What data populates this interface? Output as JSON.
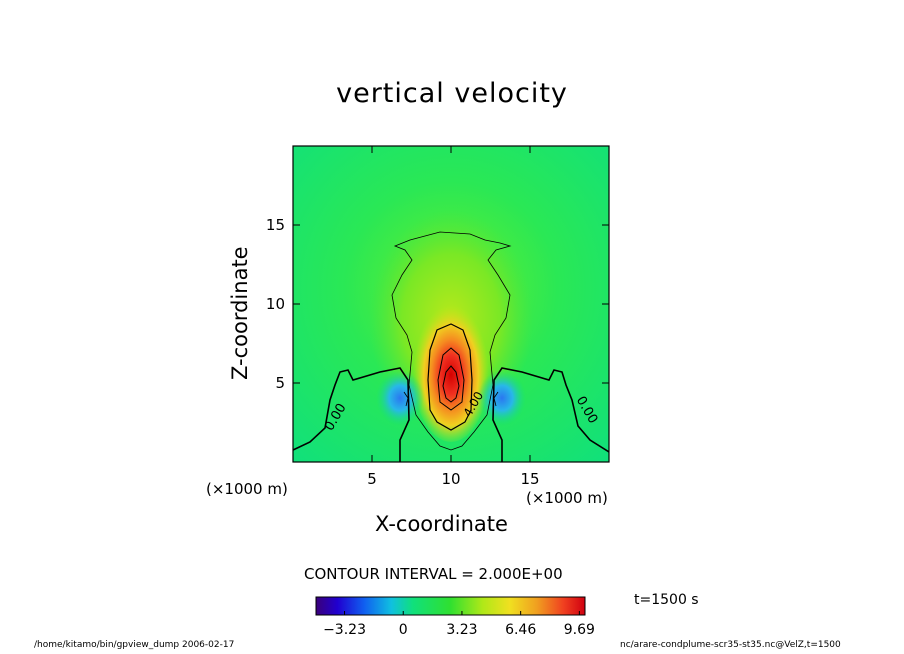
{
  "chart_data": {
    "type": "heatmap",
    "title": "vertical velocity",
    "xlabel": "X-coordinate",
    "ylabel": "Z-coordinate",
    "x_unit": "(×1000 m)",
    "y_unit": "(×1000 m)",
    "xlim": [
      0,
      20
    ],
    "ylim": [
      0,
      20
    ],
    "x_ticks": [
      5,
      10,
      15
    ],
    "y_ticks": [
      5,
      10,
      15
    ],
    "x_tick_labels": [
      "5",
      "10",
      "15"
    ],
    "y_tick_labels": [
      "5",
      "10",
      "15"
    ],
    "contour_interval_label": "CONTOUR INTERVAL = 2.000E+00",
    "contour_labels": [
      "0.00",
      "0.00",
      "4.00"
    ],
    "colorbar_ticks": [
      -3.23,
      0,
      3.23,
      6.46,
      9.69
    ],
    "colorbar_tick_labels": [
      "−3.23",
      "0",
      "3.23",
      "6.46",
      "9.69"
    ],
    "colorbar_range": [
      -4.8,
      10
    ],
    "features": [
      {
        "kind": "updraft-max",
        "x": 10,
        "z": 5,
        "value": 9.69
      },
      {
        "kind": "downdraft-min",
        "x": 7.0,
        "z": 4.0,
        "value": -3.23
      },
      {
        "kind": "downdraft-min",
        "x": 13.0,
        "z": 4.0,
        "value": -3.23
      }
    ],
    "colors": {
      "low": "#3300a0",
      "zero": "#00e07a",
      "high": "#cc1010"
    },
    "grid": false,
    "legend": "bottom"
  },
  "annotations": {
    "time": "t=1500 s",
    "footer_left": "/home/kitamo/bin/gpview_dump  2006-02-17",
    "footer_right": "nc/arare-condplume-scr35-st35.nc@VelZ,t=1500"
  }
}
